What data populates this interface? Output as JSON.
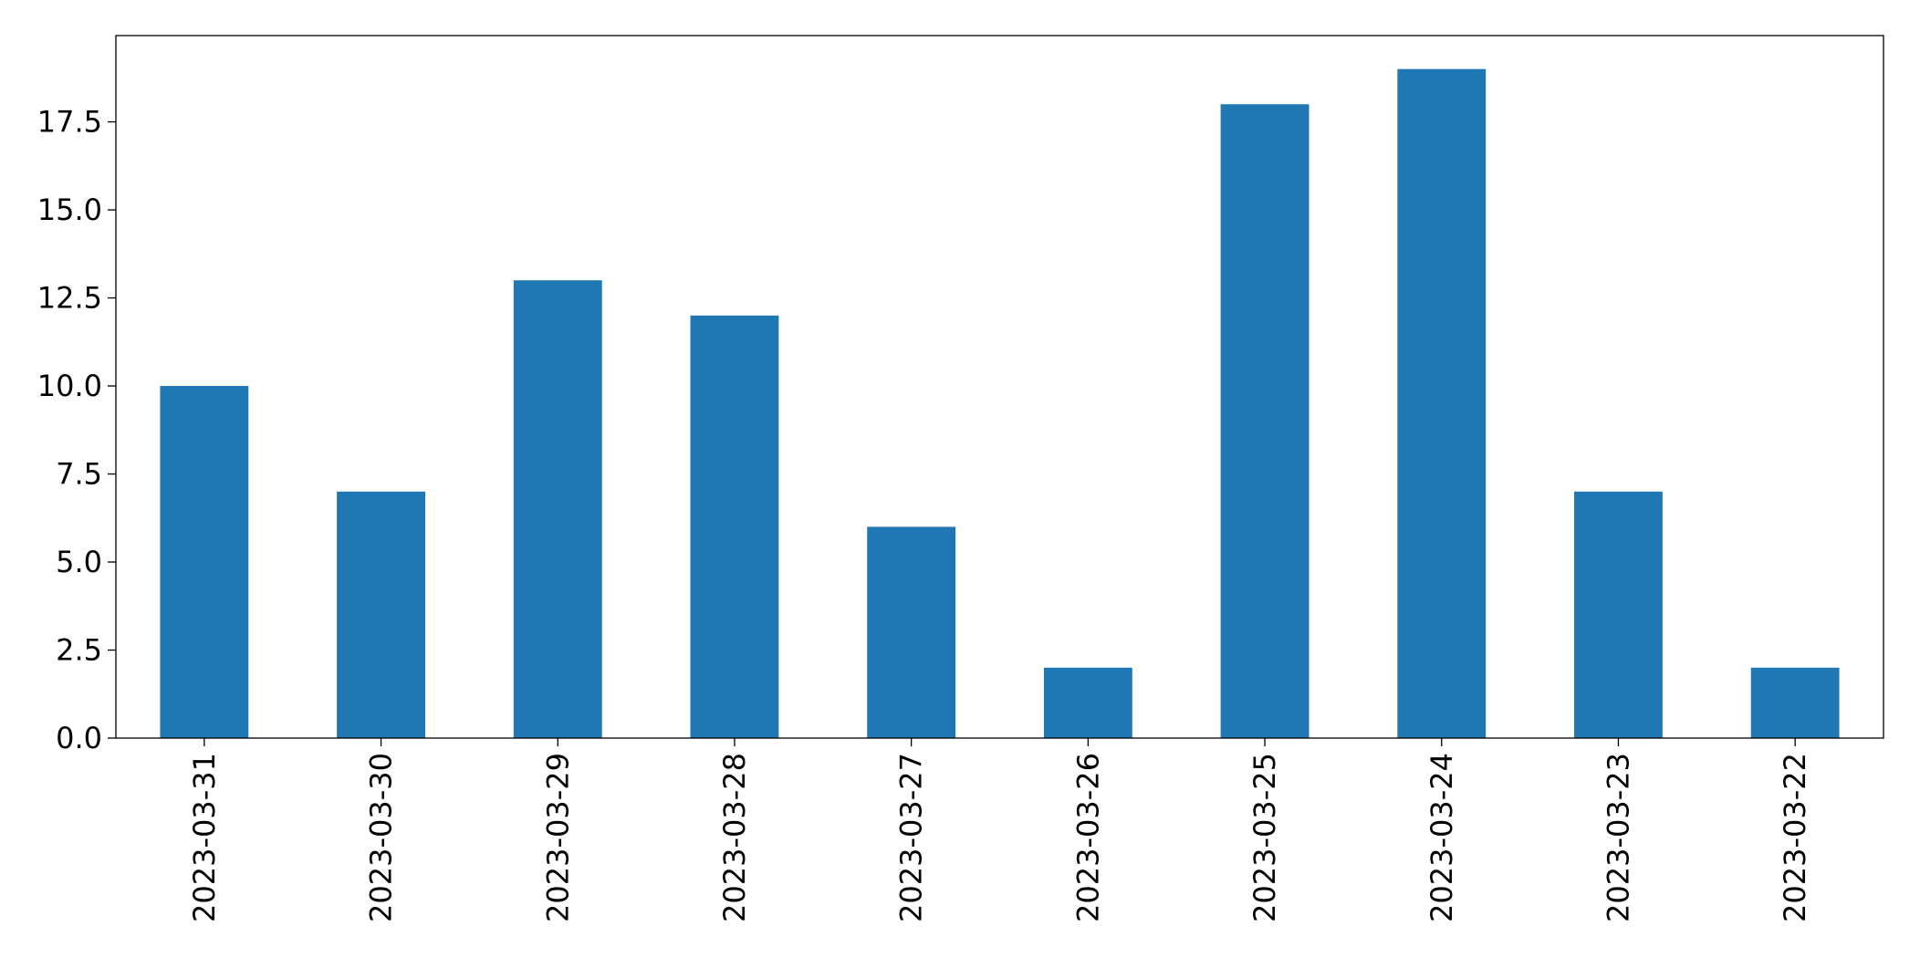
{
  "chart_data": {
    "type": "bar",
    "categories": [
      "2023-03-31",
      "2023-03-30",
      "2023-03-29",
      "2023-03-28",
      "2023-03-27",
      "2023-03-26",
      "2023-03-25",
      "2023-03-24",
      "2023-03-23",
      "2023-03-22"
    ],
    "values": [
      10,
      7,
      13,
      12,
      6,
      2,
      18,
      19,
      7,
      2
    ],
    "color": "#1f77b4",
    "ylim": [
      0,
      19.95
    ],
    "yticks": [
      {
        "value": 0,
        "label": "0.0"
      },
      2.5,
      {
        "value": 5,
        "label": "5.0"
      },
      7.5,
      {
        "value": 10,
        "label": "10.0"
      },
      12.5,
      {
        "value": 15,
        "label": "15.0"
      },
      17.5
    ],
    "grid": false
  }
}
